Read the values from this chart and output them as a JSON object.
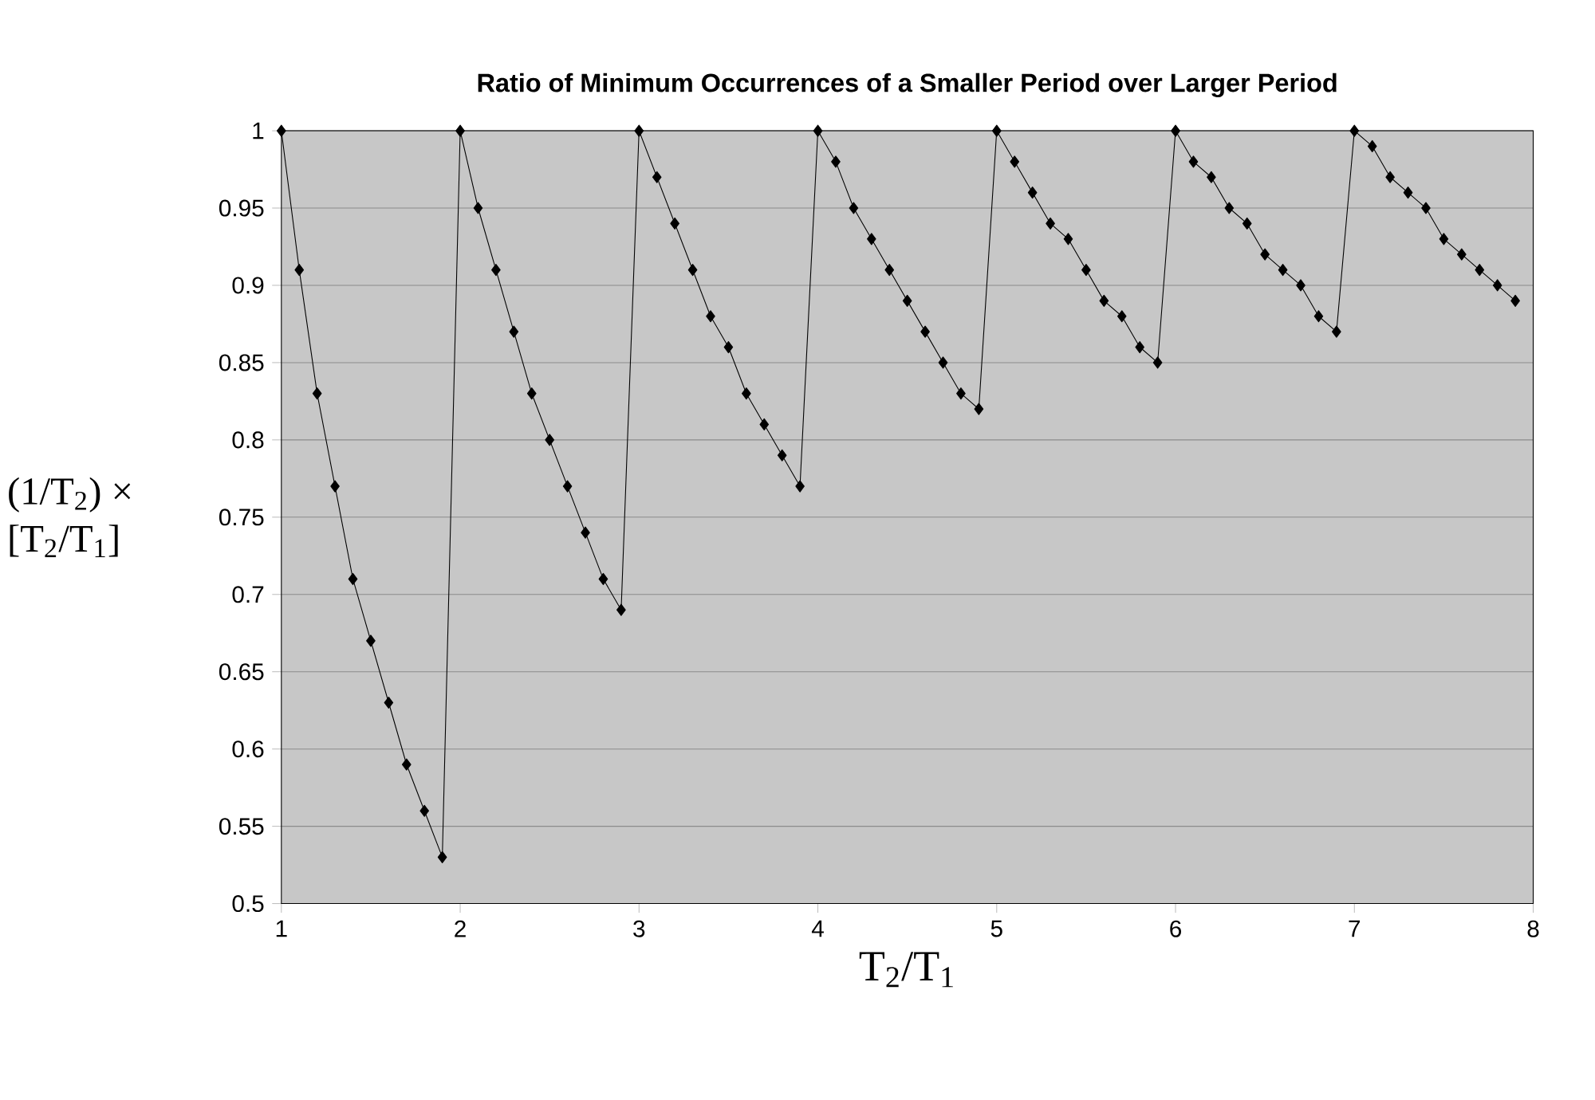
{
  "chart_data": {
    "type": "line",
    "title": "Ratio of Minimum Occurrences of a Smaller Period over Larger Period",
    "xlabel": "T$_{2}$/T$_{1}$",
    "ylabel": "(1/T$_{2}$) × [T$_{2}$/T$_{1}$]",
    "x": [
      1.0,
      1.1,
      1.2,
      1.3,
      1.4,
      1.5,
      1.6,
      1.7,
      1.8,
      1.9,
      2.0,
      2.1,
      2.2,
      2.3,
      2.4,
      2.5,
      2.6,
      2.7,
      2.8,
      2.9,
      3.0,
      3.1,
      3.2,
      3.3,
      3.4,
      3.5,
      3.6,
      3.7,
      3.8,
      3.9,
      4.0,
      4.1,
      4.2,
      4.3,
      4.4,
      4.5,
      4.6,
      4.7,
      4.8,
      4.9,
      5.0,
      5.1,
      5.2,
      5.3,
      5.4,
      5.5,
      5.6,
      5.7,
      5.8,
      5.9,
      6.0,
      6.1,
      6.2,
      6.3,
      6.4,
      6.5,
      6.6,
      6.7,
      6.8,
      6.9,
      7.0,
      7.1,
      7.2,
      7.3,
      7.4,
      7.5,
      7.6,
      7.7,
      7.8,
      7.9
    ],
    "series": [
      {
        "color": "#000000",
        "values": [
          1,
          0.91,
          0.83,
          0.77,
          0.71,
          0.67,
          0.63,
          0.59,
          0.56,
          0.53,
          1,
          0.95,
          0.91,
          0.87,
          0.83,
          0.8,
          0.77,
          0.74,
          0.71,
          0.69,
          1,
          0.97,
          0.94,
          0.91,
          0.88,
          0.86,
          0.83,
          0.81,
          0.79,
          0.77,
          1,
          0.98,
          0.95,
          0.93,
          0.91,
          0.89,
          0.87,
          0.85,
          0.83,
          0.82,
          1,
          0.98,
          0.96,
          0.94,
          0.93,
          0.91,
          0.89,
          0.88,
          0.86,
          0.85,
          1,
          0.98,
          0.97,
          0.95,
          0.94,
          0.92,
          0.91,
          0.9,
          0.88,
          0.87,
          1,
          0.99,
          0.97,
          0.96,
          0.95,
          0.93,
          0.92,
          0.91,
          0.9,
          0.89
        ]
      }
    ],
    "xlim": [
      1,
      8
    ],
    "xticks": [
      1,
      2,
      3,
      4,
      5,
      6,
      7,
      8
    ],
    "ylim": [
      0.5,
      1
    ],
    "yticks": [
      0.5,
      0.55,
      0.6,
      0.65,
      0.7,
      0.75,
      0.8,
      0.85,
      0.9,
      0.95,
      1
    ],
    "grid": "y",
    "marker": "diamond",
    "line_style": "solid"
  }
}
